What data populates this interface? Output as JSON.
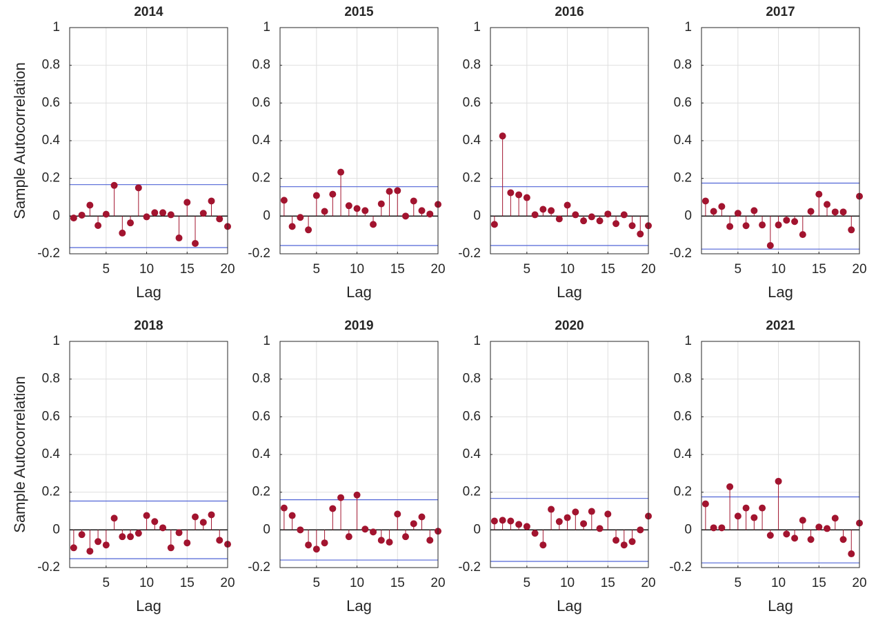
{
  "chart_data": [
    {
      "type": "stem",
      "title": "2014",
      "xlabel": "Lag",
      "ylabel": "Sample Autocorrelation",
      "x": [
        1,
        2,
        3,
        4,
        5,
        6,
        7,
        8,
        9,
        10,
        11,
        12,
        13,
        14,
        15,
        16,
        17,
        18,
        19,
        20
      ],
      "values": [
        -0.01,
        0.005,
        0.058,
        -0.05,
        0.01,
        0.163,
        -0.09,
        -0.036,
        0.15,
        -0.004,
        0.018,
        0.018,
        0.007,
        -0.116,
        0.073,
        -0.145,
        0.015,
        0.08,
        -0.015,
        -0.055
      ],
      "confidence_bounds": [
        -0.167,
        0.167
      ],
      "color": "#a2142f",
      "bound_color": "#4f63d6",
      "xlim": [
        0.5,
        20
      ],
      "ylim": [
        -0.2,
        1
      ],
      "xticks": [
        5,
        10,
        15,
        20
      ],
      "yticks": [
        -0.2,
        0,
        0.2,
        0.4,
        0.6,
        0.8,
        1
      ],
      "grid": true
    },
    {
      "type": "stem",
      "title": "2015",
      "xlabel": "Lag",
      "x": [
        1,
        2,
        3,
        4,
        5,
        6,
        7,
        8,
        9,
        10,
        11,
        12,
        13,
        14,
        15,
        16,
        17,
        18,
        19,
        20
      ],
      "values": [
        0.084,
        -0.055,
        -0.007,
        -0.073,
        0.109,
        0.025,
        0.116,
        0.233,
        0.055,
        0.04,
        0.029,
        -0.044,
        0.065,
        0.131,
        0.135,
        0,
        0.08,
        0.029,
        0.011,
        0.062
      ],
      "confidence_bounds": [
        -0.156,
        0.156
      ],
      "color": "#a2142f",
      "bound_color": "#4f63d6",
      "xlim": [
        0.5,
        20
      ],
      "ylim": [
        -0.2,
        1
      ],
      "xticks": [
        5,
        10,
        15,
        20
      ],
      "yticks": [
        -0.2,
        0,
        0.2,
        0.4,
        0.6,
        0.8,
        1
      ],
      "grid": true
    },
    {
      "type": "stem",
      "title": "2016",
      "xlabel": "Lag",
      "x": [
        1,
        2,
        3,
        4,
        5,
        6,
        7,
        8,
        9,
        10,
        11,
        12,
        13,
        14,
        15,
        16,
        17,
        18,
        19,
        20
      ],
      "values": [
        -0.044,
        0.425,
        0.124,
        0.113,
        0.098,
        0.007,
        0.036,
        0.029,
        -0.015,
        0.058,
        0.007,
        -0.025,
        -0.004,
        -0.025,
        0.011,
        -0.04,
        0.007,
        -0.051,
        -0.095,
        -0.051
      ],
      "confidence_bounds": [
        -0.156,
        0.156
      ],
      "color": "#a2142f",
      "bound_color": "#4f63d6",
      "xlim": [
        0.5,
        20
      ],
      "ylim": [
        -0.2,
        1
      ],
      "xticks": [
        5,
        10,
        15,
        20
      ],
      "yticks": [
        -0.2,
        0,
        0.2,
        0.4,
        0.6,
        0.8,
        1
      ],
      "grid": true
    },
    {
      "type": "stem",
      "title": "2017",
      "xlabel": "Lag",
      "x": [
        1,
        2,
        3,
        4,
        5,
        6,
        7,
        8,
        9,
        10,
        11,
        12,
        13,
        14,
        15,
        16,
        17,
        18,
        19,
        20
      ],
      "values": [
        0.08,
        0.025,
        0.051,
        -0.055,
        0.015,
        -0.051,
        0.029,
        -0.047,
        -0.156,
        -0.047,
        -0.022,
        -0.029,
        -0.098,
        0.025,
        0.116,
        0.062,
        0.022,
        0.022,
        -0.073,
        0.105
      ],
      "confidence_bounds": [
        -0.175,
        0.175
      ],
      "color": "#a2142f",
      "bound_color": "#4f63d6",
      "xlim": [
        0.5,
        20
      ],
      "ylim": [
        -0.2,
        1
      ],
      "xticks": [
        5,
        10,
        15,
        20
      ],
      "yticks": [
        -0.2,
        0,
        0.2,
        0.4,
        0.6,
        0.8,
        1
      ],
      "grid": true
    },
    {
      "type": "stem",
      "title": "2018",
      "xlabel": "Lag",
      "ylabel": "Sample Autocorrelation",
      "x": [
        1,
        2,
        3,
        4,
        5,
        6,
        7,
        8,
        9,
        10,
        11,
        12,
        13,
        14,
        15,
        16,
        17,
        18,
        19,
        20
      ],
      "values": [
        -0.095,
        -0.025,
        -0.113,
        -0.062,
        -0.08,
        0.062,
        -0.036,
        -0.036,
        -0.018,
        0.076,
        0.044,
        0.011,
        -0.095,
        -0.015,
        -0.069,
        0.069,
        0.04,
        0.08,
        -0.055,
        -0.076
      ],
      "confidence_bounds": [
        -0.153,
        0.153
      ],
      "color": "#a2142f",
      "bound_color": "#4f63d6",
      "xlim": [
        0.5,
        20
      ],
      "ylim": [
        -0.2,
        1
      ],
      "xticks": [
        5,
        10,
        15,
        20
      ],
      "yticks": [
        -0.2,
        0,
        0.2,
        0.4,
        0.6,
        0.8,
        1
      ],
      "grid": true
    },
    {
      "type": "stem",
      "title": "2019",
      "xlabel": "Lag",
      "x": [
        1,
        2,
        3,
        4,
        5,
        6,
        7,
        8,
        9,
        10,
        11,
        12,
        13,
        14,
        15,
        16,
        17,
        18,
        19,
        20
      ],
      "values": [
        0.116,
        0.076,
        0,
        -0.08,
        -0.102,
        -0.069,
        0.113,
        0.171,
        -0.036,
        0.185,
        0.004,
        -0.011,
        -0.055,
        -0.065,
        0.084,
        -0.036,
        0.033,
        0.069,
        -0.055,
        -0.007
      ],
      "confidence_bounds": [
        -0.16,
        0.16
      ],
      "color": "#a2142f",
      "bound_color": "#4f63d6",
      "xlim": [
        0.5,
        20
      ],
      "ylim": [
        -0.2,
        1
      ],
      "xticks": [
        5,
        10,
        15,
        20
      ],
      "yticks": [
        -0.2,
        0,
        0.2,
        0.4,
        0.6,
        0.8,
        1
      ],
      "grid": true
    },
    {
      "type": "stem",
      "title": "2020",
      "xlabel": "Lag",
      "x": [
        1,
        2,
        3,
        4,
        5,
        6,
        7,
        8,
        9,
        10,
        11,
        12,
        13,
        14,
        15,
        16,
        17,
        18,
        19,
        20
      ],
      "values": [
        0.047,
        0.051,
        0.047,
        0.029,
        0.018,
        -0.018,
        -0.08,
        0.109,
        0.044,
        0.065,
        0.095,
        0.033,
        0.098,
        0.007,
        0.084,
        -0.055,
        -0.08,
        -0.062,
        0,
        0.073
      ],
      "confidence_bounds": [
        -0.167,
        0.167
      ],
      "color": "#a2142f",
      "bound_color": "#4f63d6",
      "xlim": [
        0.5,
        20
      ],
      "ylim": [
        -0.2,
        1
      ],
      "xticks": [
        5,
        10,
        15,
        20
      ],
      "yticks": [
        -0.2,
        0,
        0.2,
        0.4,
        0.6,
        0.8,
        1
      ],
      "grid": true
    },
    {
      "type": "stem",
      "title": "2021",
      "xlabel": "Lag",
      "x": [
        1,
        2,
        3,
        4,
        5,
        6,
        7,
        8,
        9,
        10,
        11,
        12,
        13,
        14,
        15,
        16,
        17,
        18,
        19,
        20
      ],
      "values": [
        0.138,
        0.011,
        0.011,
        0.229,
        0.073,
        0.116,
        0.065,
        0.116,
        -0.029,
        0.258,
        -0.022,
        -0.044,
        0.051,
        -0.051,
        0.015,
        0.007,
        0.062,
        -0.051,
        -0.127,
        0.036
      ],
      "confidence_bounds": [
        -0.175,
        0.175
      ],
      "color": "#a2142f",
      "bound_color": "#4f63d6",
      "xlim": [
        0.5,
        20
      ],
      "ylim": [
        -0.2,
        1
      ],
      "xticks": [
        5,
        10,
        15,
        20
      ],
      "yticks": [
        -0.2,
        0,
        0.2,
        0.4,
        0.6,
        0.8,
        1
      ],
      "grid": true
    }
  ]
}
